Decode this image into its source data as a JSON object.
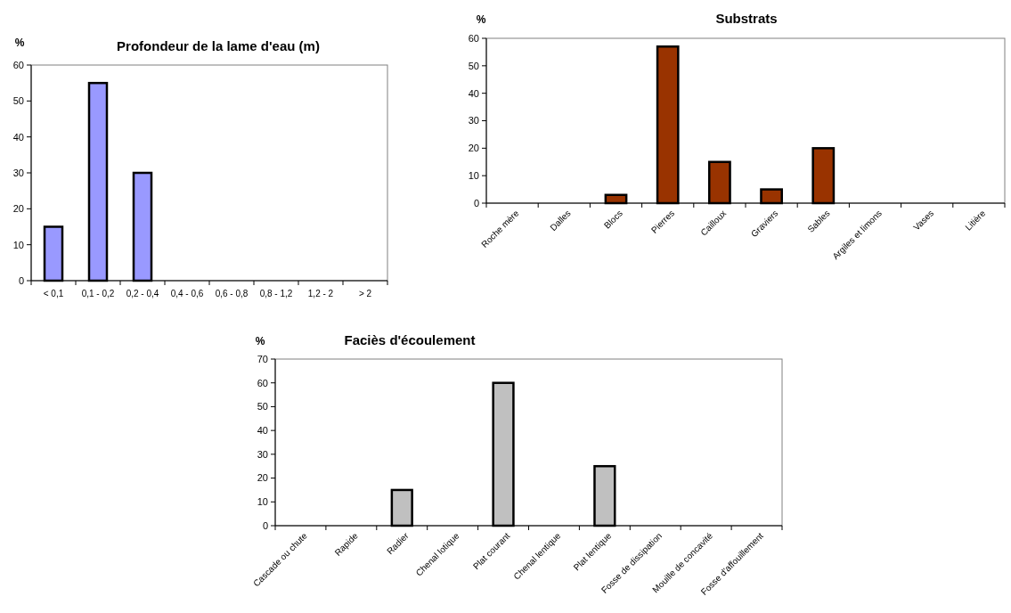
{
  "chart_data": [
    {
      "type": "bar",
      "title": "Profondeur de la lame d'eau (m)",
      "ylabel": "%",
      "categories": [
        "< 0,1",
        "0,1 - 0,2",
        "0,2 - 0,4",
        "0,4 - 0,6",
        "0,6 - 0,8",
        "0,8 - 1,2",
        "1,2 - 2",
        "> 2"
      ],
      "values": [
        15,
        55,
        30,
        0,
        0,
        0,
        0,
        0
      ],
      "color": "#9999ff",
      "ylim": [
        0,
        60
      ],
      "yticks": [
        0,
        10,
        20,
        30,
        40,
        50,
        60
      ],
      "grid": false
    },
    {
      "type": "bar",
      "title": "Substrats",
      "ylabel": "%",
      "categories": [
        "Roche mère",
        "Dalles",
        "Blocs",
        "Pierres",
        "Cailloux",
        "Graviers",
        "Sables",
        "Argiles et limons",
        "Vases",
        "Litière"
      ],
      "values": [
        0,
        0,
        3,
        57,
        15,
        5,
        20,
        0,
        0,
        0
      ],
      "color": "#993300",
      "ylim": [
        0,
        60
      ],
      "yticks": [
        0,
        10,
        20,
        30,
        40,
        50,
        60
      ],
      "grid": false
    },
    {
      "type": "bar",
      "title": "Faciès d'écoulement",
      "ylabel": "%",
      "categories": [
        "Cascade ou chute",
        "Rapide",
        "Radier",
        "Chenal lotique",
        "Plat courant",
        "Chenal lentique",
        "Plat lentique",
        "Fosse de dissipation",
        "Mouille de concavité",
        "Fosse d'affouillement"
      ],
      "values": [
        0,
        0,
        15,
        0,
        60,
        0,
        25,
        0,
        0,
        0
      ],
      "color": "#c0c0c0",
      "ylim": [
        0,
        70
      ],
      "yticks": [
        0,
        10,
        20,
        30,
        40,
        50,
        60,
        70
      ],
      "grid": false
    }
  ]
}
